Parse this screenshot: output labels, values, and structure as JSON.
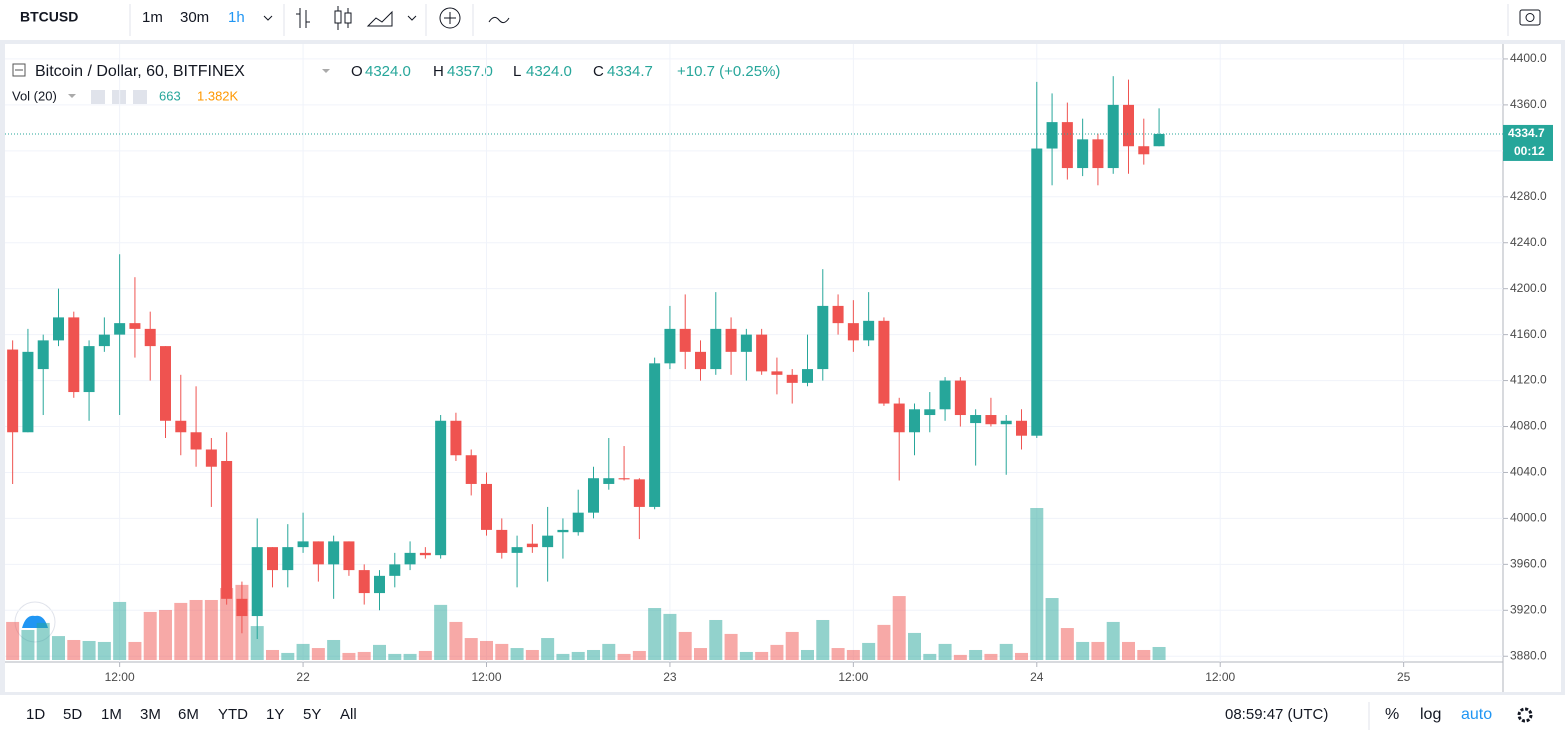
{
  "toolbar": {
    "symbol": "BTCUSD",
    "intervals": [
      "1m",
      "30m",
      "1h"
    ]
  },
  "chart_data": {
    "type": "candlestick",
    "title": "Bitcoin / Dollar, 60, BITFINEX",
    "legend": {
      "o": "O",
      "o_value": "4324.0",
      "h": "H",
      "h_value": "4357.0",
      "l": "L",
      "l_value": "4324.0",
      "c": "C",
      "c_value": "4334.7",
      "change": "+10.7 (+0.25%)"
    },
    "volume_legend": {
      "label": "Vol (20)",
      "value": "663",
      "ma": "1.382K"
    },
    "countdown": "00:12",
    "categories": [
      null,
      null,
      null,
      null,
      null,
      null,
      null,
      "12:00",
      null,
      null,
      null,
      null,
      null,
      null,
      null,
      null,
      null,
      null,
      null,
      "22",
      null,
      null,
      null,
      null,
      null,
      null,
      null,
      null,
      null,
      null,
      null,
      "12:00",
      null,
      null,
      null,
      null,
      null,
      null,
      null,
      null,
      null,
      null,
      null,
      "23",
      null,
      null,
      null,
      null,
      null,
      null,
      null,
      null,
      null,
      null,
      null,
      "12:00",
      null,
      null,
      null,
      null,
      null,
      null,
      null,
      null,
      null,
      null,
      null,
      "24",
      null,
      null,
      null,
      null,
      null,
      null,
      null,
      null,
      null,
      null,
      null,
      "12:00",
      null,
      null,
      null,
      null,
      null,
      null,
      null,
      null,
      null,
      null,
      null,
      "25",
      null,
      null,
      null,
      null,
      null,
      null
    ],
    "open": [
      4147,
      4075,
      4130,
      4155,
      4175,
      4110,
      4150,
      4160,
      4170,
      4165,
      4150,
      4085,
      4075,
      4060,
      4050,
      3930,
      3915,
      3975,
      3955,
      3975,
      3980,
      3960,
      3980,
      3955,
      3935,
      3950,
      3960,
      3970,
      3968,
      4085,
      4055,
      4030,
      3990,
      3970,
      3978,
      3975,
      3988,
      3988,
      4005,
      4030,
      4035,
      4034,
      4010,
      4135,
      4165,
      4145,
      4130,
      4165,
      4145,
      4160,
      4128,
      4125,
      4118,
      4130,
      4185,
      4170,
      4155,
      4172,
      4100,
      4075,
      4090,
      4095,
      4120,
      4083,
      4090,
      4082,
      4085,
      4072,
      4322,
      4345,
      4305,
      4330,
      4305,
      4360,
      4324,
      4324,
      null,
      null,
      null,
      null,
      null,
      null,
      null,
      null,
      null,
      null,
      null,
      null,
      null,
      null,
      null,
      null,
      null,
      null,
      null,
      null,
      null,
      null
    ],
    "high": [
      4155,
      4165,
      4160,
      4200,
      4180,
      4155,
      4175,
      4230,
      4210,
      4180,
      4150,
      4125,
      4115,
      4070,
      4075,
      3945,
      4000,
      3975,
      3995,
      4005,
      3980,
      3985,
      3980,
      3960,
      3955,
      3970,
      3980,
      3975,
      4090,
      4092,
      4060,
      4040,
      4000,
      3985,
      3995,
      4010,
      4000,
      4025,
      4045,
      4070,
      4063,
      4035,
      4140,
      4185,
      4195,
      4155,
      4197,
      4175,
      4165,
      4165,
      4140,
      4130,
      4160,
      4217,
      4195,
      4190,
      4197,
      4175,
      4105,
      4100,
      4110,
      4123,
      4123,
      4095,
      4105,
      4090,
      4095,
      4380,
      4370,
      4362,
      4348,
      4335,
      4385,
      4382,
      4348,
      4357,
      null,
      null,
      null,
      null,
      null,
      null,
      null,
      null,
      null,
      null,
      null,
      null,
      null,
      null,
      null,
      null,
      null,
      null,
      null,
      null,
      null,
      null
    ],
    "low": [
      4030,
      4075,
      4090,
      4150,
      4105,
      4085,
      4145,
      4090,
      4140,
      4120,
      4070,
      4055,
      4045,
      4010,
      3925,
      3900,
      3895,
      3940,
      3940,
      3970,
      3945,
      3930,
      3950,
      3925,
      3920,
      3940,
      3955,
      3965,
      3965,
      4050,
      4020,
      3985,
      3965,
      3940,
      3970,
      3945,
      3965,
      3985,
      4000,
      4025,
      4033,
      3982,
      4008,
      4130,
      4130,
      4120,
      4125,
      4125,
      4120,
      4125,
      4108,
      4100,
      4115,
      4120,
      4160,
      4145,
      4150,
      4098,
      4033,
      4055,
      4075,
      4085,
      4080,
      4046,
      4080,
      4038,
      4060,
      4070,
      4290,
      4295,
      4298,
      4290,
      4300,
      4300,
      4308,
      4324,
      null,
      null,
      null,
      null,
      null,
      null,
      null,
      null,
      null,
      null,
      null,
      null,
      null,
      null,
      null,
      null,
      null,
      null,
      null,
      null,
      null,
      null
    ],
    "close": [
      4075,
      4145,
      4155,
      4175,
      4110,
      4150,
      4160,
      4170,
      4165,
      4150,
      4085,
      4075,
      4060,
      4045,
      3930,
      3915,
      3975,
      3955,
      3975,
      3980,
      3960,
      3980,
      3955,
      3935,
      3950,
      3960,
      3970,
      3968,
      4085,
      4055,
      4030,
      3990,
      3970,
      3975,
      3975,
      3985,
      3990,
      4005,
      4035,
      4035,
      4034,
      4010,
      4135,
      4165,
      4145,
      4130,
      4165,
      4145,
      4160,
      4128,
      4125,
      4118,
      4130,
      4185,
      4170,
      4155,
      4172,
      4100,
      4075,
      4095,
      4095,
      4120,
      4090,
      4090,
      4082,
      4085,
      4072,
      4322,
      4345,
      4305,
      4330,
      4305,
      4360,
      4324,
      4317,
      4334.7,
      null,
      null,
      null,
      null,
      null,
      null,
      null,
      null,
      null,
      null,
      null,
      null,
      null,
      null,
      null,
      null,
      null,
      null,
      null,
      null,
      null,
      null
    ],
    "volume": [
      1940,
      1530,
      1890,
      1220,
      1020,
      970,
      920,
      2960,
      920,
      2450,
      2550,
      2910,
      3060,
      3060,
      3670,
      3830,
      1730,
      510,
      360,
      820,
      610,
      1020,
      360,
      410,
      770,
      310,
      310,
      460,
      2810,
      1940,
      1120,
      970,
      820,
      610,
      510,
      1120,
      310,
      410,
      510,
      820,
      310,
      460,
      2650,
      2350,
      1430,
      610,
      2040,
      1330,
      410,
      410,
      770,
      1430,
      510,
      2040,
      610,
      510,
      870,
      1790,
      3260,
      1380,
      310,
      820,
      260,
      510,
      310,
      820,
      360,
      7750,
      3160,
      1630,
      920,
      920,
      1940,
      920,
      510,
      663,
      null,
      null,
      null,
      null,
      null,
      null,
      null,
      null,
      null,
      null,
      null,
      null,
      null,
      null,
      null,
      null,
      null,
      null,
      null,
      null,
      null,
      null
    ],
    "up_color": "#26a69a",
    "down_color": "#ef5350",
    "ylim": [
      3875,
      4413
    ],
    "yticks": [
      {
        "value": 3880,
        "label": "3880.0"
      },
      {
        "value": 3920,
        "label": "3920.0"
      },
      {
        "value": 3960,
        "label": "3960.0"
      },
      {
        "value": 4000,
        "label": "4000.0"
      },
      {
        "value": 4040,
        "label": "4040.0"
      },
      {
        "value": 4080,
        "label": "4080.0"
      },
      {
        "value": 4120,
        "label": "4120.0"
      },
      {
        "value": 4160,
        "label": "4160.0"
      },
      {
        "value": 4200,
        "label": "4200.0"
      },
      {
        "value": 4240,
        "label": "4240.0"
      },
      {
        "value": 4280,
        "label": "4280.0"
      },
      {
        "value": 4320,
        "label": "4320.0"
      },
      {
        "value": 4360,
        "label": "4360.0"
      },
      {
        "value": 4400,
        "label": "4400.0"
      }
    ],
    "grid": true
  },
  "bottom_bar": {
    "ranges": [
      "1D",
      "5D",
      "1M",
      "3M",
      "6M",
      "YTD",
      "1Y",
      "5Y",
      "All"
    ],
    "clock": "08:59:47 (UTC)",
    "options": [
      "%",
      "log",
      "auto"
    ]
  }
}
